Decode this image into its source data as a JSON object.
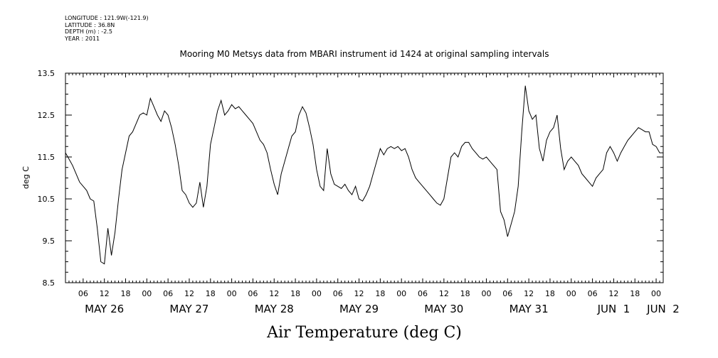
{
  "meta_lines": [
    "LONGITUDE : 121.9W(-121.9)",
    "LATITUDE : 36.8N",
    "DEPTH (m) : -2.5",
    "YEAR : 2011"
  ],
  "chart_data": {
    "type": "line",
    "title": "Mooring M0 Metsys data from MBARI instrument id 1424 at original sampling intervals",
    "xlabel": "Air Temperature (deg C)",
    "ylabel": "deg C",
    "xlim_hours": [
      1,
      170
    ],
    "ylim": [
      8.5,
      13.5
    ],
    "yticks": [
      8.5,
      9.5,
      10.5,
      11.5,
      12.5,
      13.5
    ],
    "hour_tick_labels": [
      "06",
      "12",
      "18",
      "00",
      "06",
      "12",
      "18",
      "00",
      "06",
      "12",
      "18",
      "00",
      "06",
      "12",
      "18",
      "00",
      "06",
      "12",
      "18",
      "00",
      "06",
      "12",
      "18",
      "00",
      "06",
      "12",
      "18",
      "00"
    ],
    "hour_tick_positions": [
      6,
      12,
      18,
      24,
      30,
      36,
      42,
      48,
      54,
      60,
      66,
      72,
      78,
      84,
      90,
      96,
      102,
      108,
      114,
      120,
      126,
      132,
      138,
      144,
      150,
      156,
      162,
      168
    ],
    "day_labels": [
      {
        "text": "MAY 26",
        "hour": 12
      },
      {
        "text": "MAY 27",
        "hour": 36
      },
      {
        "text": "MAY 28",
        "hour": 60
      },
      {
        "text": "MAY 29",
        "hour": 84
      },
      {
        "text": "MAY 30",
        "hour": 108
      },
      {
        "text": "MAY 31",
        "hour": 132
      },
      {
        "text": "JUN  1",
        "hour": 156
      },
      {
        "text": "JUN  2",
        "hour": 170
      }
    ],
    "series": [
      {
        "line_color": "#000000",
        "points": [
          [
            1,
            11.6
          ],
          [
            2,
            11.45
          ],
          [
            3,
            11.3
          ],
          [
            4,
            11.1
          ],
          [
            5,
            10.9
          ],
          [
            6,
            10.8
          ],
          [
            7,
            10.7
          ],
          [
            8,
            10.5
          ],
          [
            9,
            10.45
          ],
          [
            10,
            9.8
          ],
          [
            11,
            9.0
          ],
          [
            12,
            8.95
          ],
          [
            13,
            9.8
          ],
          [
            14,
            9.15
          ],
          [
            15,
            9.7
          ],
          [
            16,
            10.5
          ],
          [
            17,
            11.2
          ],
          [
            18,
            11.6
          ],
          [
            19,
            12.0
          ],
          [
            20,
            12.1
          ],
          [
            21,
            12.3
          ],
          [
            22,
            12.5
          ],
          [
            23,
            12.55
          ],
          [
            24,
            12.5
          ],
          [
            25,
            12.9
          ],
          [
            26,
            12.7
          ],
          [
            27,
            12.5
          ],
          [
            28,
            12.35
          ],
          [
            29,
            12.6
          ],
          [
            30,
            12.5
          ],
          [
            31,
            12.2
          ],
          [
            32,
            11.8
          ],
          [
            33,
            11.3
          ],
          [
            34,
            10.7
          ],
          [
            35,
            10.6
          ],
          [
            36,
            10.4
          ],
          [
            37,
            10.3
          ],
          [
            38,
            10.4
          ],
          [
            39,
            10.9
          ],
          [
            40,
            10.3
          ],
          [
            41,
            10.8
          ],
          [
            42,
            11.8
          ],
          [
            43,
            12.2
          ],
          [
            44,
            12.6
          ],
          [
            45,
            12.85
          ],
          [
            46,
            12.5
          ],
          [
            47,
            12.6
          ],
          [
            48,
            12.75
          ],
          [
            49,
            12.65
          ],
          [
            50,
            12.7
          ],
          [
            51,
            12.6
          ],
          [
            52,
            12.5
          ],
          [
            53,
            12.4
          ],
          [
            54,
            12.3
          ],
          [
            55,
            12.1
          ],
          [
            56,
            11.9
          ],
          [
            57,
            11.8
          ],
          [
            58,
            11.6
          ],
          [
            59,
            11.2
          ],
          [
            60,
            10.85
          ],
          [
            61,
            10.6
          ],
          [
            62,
            11.1
          ],
          [
            63,
            11.4
          ],
          [
            64,
            11.7
          ],
          [
            65,
            12.0
          ],
          [
            66,
            12.1
          ],
          [
            67,
            12.5
          ],
          [
            68,
            12.7
          ],
          [
            69,
            12.55
          ],
          [
            70,
            12.2
          ],
          [
            71,
            11.8
          ],
          [
            72,
            11.2
          ],
          [
            73,
            10.8
          ],
          [
            74,
            10.7
          ],
          [
            75,
            11.7
          ],
          [
            76,
            11.1
          ],
          [
            77,
            10.85
          ],
          [
            78,
            10.8
          ],
          [
            79,
            10.75
          ],
          [
            80,
            10.85
          ],
          [
            81,
            10.7
          ],
          [
            82,
            10.6
          ],
          [
            83,
            10.8
          ],
          [
            84,
            10.5
          ],
          [
            85,
            10.45
          ],
          [
            86,
            10.6
          ],
          [
            87,
            10.8
          ],
          [
            88,
            11.1
          ],
          [
            89,
            11.4
          ],
          [
            90,
            11.7
          ],
          [
            91,
            11.55
          ],
          [
            92,
            11.7
          ],
          [
            93,
            11.75
          ],
          [
            94,
            11.7
          ],
          [
            95,
            11.75
          ],
          [
            96,
            11.65
          ],
          [
            97,
            11.7
          ],
          [
            98,
            11.5
          ],
          [
            99,
            11.2
          ],
          [
            100,
            11.0
          ],
          [
            101,
            10.9
          ],
          [
            102,
            10.8
          ],
          [
            103,
            10.7
          ],
          [
            104,
            10.6
          ],
          [
            105,
            10.5
          ],
          [
            106,
            10.4
          ],
          [
            107,
            10.35
          ],
          [
            108,
            10.5
          ],
          [
            109,
            11.0
          ],
          [
            110,
            11.5
          ],
          [
            111,
            11.6
          ],
          [
            112,
            11.5
          ],
          [
            113,
            11.75
          ],
          [
            114,
            11.85
          ],
          [
            115,
            11.85
          ],
          [
            116,
            11.7
          ],
          [
            117,
            11.6
          ],
          [
            118,
            11.5
          ],
          [
            119,
            11.45
          ],
          [
            120,
            11.5
          ],
          [
            121,
            11.4
          ],
          [
            122,
            11.3
          ],
          [
            123,
            11.2
          ],
          [
            124,
            10.2
          ],
          [
            125,
            10.0
          ],
          [
            126,
            9.6
          ],
          [
            127,
            9.9
          ],
          [
            128,
            10.2
          ],
          [
            129,
            10.8
          ],
          [
            130,
            12.1
          ],
          [
            131,
            13.2
          ],
          [
            132,
            12.6
          ],
          [
            133,
            12.4
          ],
          [
            134,
            12.5
          ],
          [
            135,
            11.7
          ],
          [
            136,
            11.4
          ],
          [
            137,
            11.9
          ],
          [
            138,
            12.1
          ],
          [
            139,
            12.2
          ],
          [
            140,
            12.5
          ],
          [
            141,
            11.7
          ],
          [
            142,
            11.2
          ],
          [
            143,
            11.4
          ],
          [
            144,
            11.5
          ],
          [
            145,
            11.4
          ],
          [
            146,
            11.3
          ],
          [
            147,
            11.1
          ],
          [
            148,
            11.0
          ],
          [
            149,
            10.9
          ],
          [
            150,
            10.8
          ],
          [
            151,
            11.0
          ],
          [
            152,
            11.1
          ],
          [
            153,
            11.2
          ],
          [
            154,
            11.6
          ],
          [
            155,
            11.75
          ],
          [
            156,
            11.6
          ],
          [
            157,
            11.4
          ],
          [
            158,
            11.6
          ],
          [
            159,
            11.75
          ],
          [
            160,
            11.9
          ],
          [
            161,
            12.0
          ],
          [
            162,
            12.1
          ],
          [
            163,
            12.2
          ],
          [
            164,
            12.15
          ],
          [
            165,
            12.1
          ],
          [
            166,
            12.1
          ],
          [
            167,
            11.8
          ],
          [
            168,
            11.75
          ],
          [
            169,
            11.6
          ],
          [
            170,
            11.6
          ]
        ]
      }
    ]
  }
}
